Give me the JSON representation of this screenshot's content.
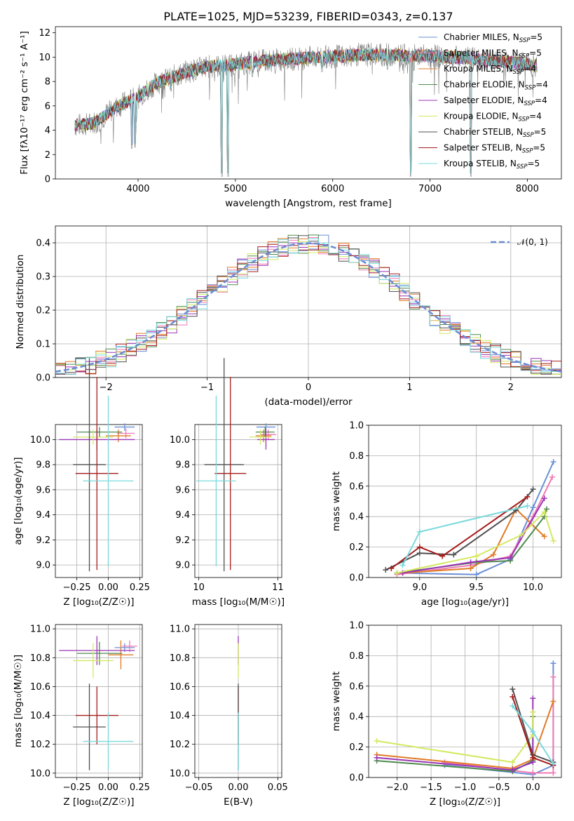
{
  "figure": {
    "title": "PLATE=1025, MJD=53239, FIBERID=0343, z=0.137"
  },
  "colors": {
    "Chabrier MILES": "#6a8fd6",
    "Salpeter MILES": "#f07ab4",
    "Kroupa MILES": "#e07b25",
    "Chabrier ELODIE": "#4f8a4f",
    "Salpeter ELODIE": "#9b35b5",
    "Kroupa ELODIE": "#d4e860",
    "Chabrier STELIB": "#505050",
    "Salpeter STELIB": "#a51c1c",
    "Kroupa STELIB": "#79d9dc",
    "data": "#808080",
    "gaussian": "#6b8cd4"
  },
  "chart_data": [
    {
      "id": "spectrum",
      "type": "line",
      "title": "PLATE=1025, MJD=53239, FIBERID=0343, z=0.137",
      "xlabel": "wavelength [Angstrom, rest frame]",
      "ylabel": "Flux [fλ10⁻¹⁷ erg cm⁻² s⁻¹ A⁻¹]",
      "xlim": [
        3150,
        8350
      ],
      "ylim": [
        0,
        12.5
      ],
      "xticks": [
        4000,
        5000,
        6000,
        7000,
        8000
      ],
      "yticks": [
        0,
        2,
        4,
        6,
        8,
        10,
        12
      ],
      "legend_position": "right",
      "legend": [
        {
          "name": "Chabrier MILES",
          "nssp": "5"
        },
        {
          "name": "Salpeter MILES",
          "nssp": "5"
        },
        {
          "name": "Kroupa MILES",
          "nssp": "4"
        },
        {
          "name": "Chabrier ELODIE",
          "nssp": "4"
        },
        {
          "name": "Salpeter ELODIE",
          "nssp": "4"
        },
        {
          "name": "Kroupa ELODIE",
          "nssp": "4"
        },
        {
          "name": "Chabrier STELIB",
          "nssp": "5"
        },
        {
          "name": "Salpeter STELIB",
          "nssp": "5"
        },
        {
          "name": "Kroupa STELIB",
          "nssp": "5"
        }
      ],
      "continuum": [
        [
          3350,
          4.4
        ],
        [
          3500,
          4.5
        ],
        [
          3600,
          4.8
        ],
        [
          3700,
          5.5
        ],
        [
          3800,
          6.0
        ],
        [
          3900,
          6.4
        ],
        [
          4000,
          6.7
        ],
        [
          4100,
          7.4
        ],
        [
          4200,
          7.9
        ],
        [
          4300,
          8.2
        ],
        [
          4400,
          8.5
        ],
        [
          4500,
          8.8
        ],
        [
          4700,
          9.2
        ],
        [
          4900,
          9.3
        ],
        [
          5100,
          9.5
        ],
        [
          5300,
          9.7
        ],
        [
          5500,
          9.8
        ],
        [
          5700,
          9.9
        ],
        [
          5900,
          10.0
        ],
        [
          6100,
          10.1
        ],
        [
          6300,
          10.2
        ],
        [
          6500,
          10.2
        ],
        [
          6800,
          10.1
        ],
        [
          7000,
          10.1
        ],
        [
          7200,
          10.0
        ],
        [
          7400,
          9.9
        ],
        [
          7600,
          9.7
        ],
        [
          7800,
          9.6
        ],
        [
          8000,
          9.4
        ],
        [
          8100,
          9.3
        ]
      ],
      "dips": [
        [
          3934,
          2.5
        ],
        [
          3968,
          2.6
        ],
        [
          4102,
          6.5
        ],
        [
          4340,
          7.2
        ],
        [
          4861,
          0.2
        ],
        [
          4925,
          0.2
        ],
        [
          5175,
          8.4
        ],
        [
          5890,
          8.8
        ],
        [
          6563,
          9.0
        ],
        [
          6800,
          0.2
        ],
        [
          7420,
          0.2
        ]
      ]
    },
    {
      "id": "residuals",
      "type": "histogram",
      "xlabel": "(data-model)/error",
      "ylabel": "Normed distribution",
      "xlim": [
        -2.5,
        2.5
      ],
      "ylim": [
        0,
        0.45
      ],
      "xticks": [
        -2,
        -1,
        0,
        1,
        2
      ],
      "yticks": [
        0.0,
        0.1,
        0.2,
        0.3,
        0.4
      ],
      "legend": "𝒩(0, 1)",
      "legend_position": "top-right",
      "gaussian": {
        "mean": 0,
        "sigma": 1
      },
      "bin_width": 0.1
    },
    {
      "id": "age-vs-Z",
      "type": "errorbar",
      "xlabel": "Z [log₁₀(Z/Z☉)]",
      "ylabel": "age  [log₁₀(age/yr)]",
      "xlim": [
        -0.42,
        0.27
      ],
      "ylim": [
        8.9,
        10.12
      ],
      "xticks": [
        -0.25,
        0.0,
        0.25
      ],
      "yticks": [
        9.0,
        9.2,
        9.4,
        9.6,
        9.8,
        10.0
      ],
      "points": [
        {
          "model": "Chabrier MILES",
          "x": 0.13,
          "xerr": 0.08,
          "y": 10.1,
          "yerr": 0.03
        },
        {
          "model": "Salpeter MILES",
          "x": 0.14,
          "xerr": 0.07,
          "y": 10.05,
          "yerr": 0.04
        },
        {
          "model": "Kroupa MILES",
          "x": 0.08,
          "xerr": 0.1,
          "y": 10.03,
          "yerr": 0.05
        },
        {
          "model": "Chabrier ELODIE",
          "x": -0.07,
          "xerr": 0.18,
          "y": 10.06,
          "yerr": 0.04
        },
        {
          "model": "Salpeter ELODIE",
          "x": -0.09,
          "xerr": 0.3,
          "y": 10.0,
          "yerr": 0.08
        },
        {
          "model": "Kroupa ELODIE",
          "x": -0.12,
          "xerr": 0.16,
          "y": 10.02,
          "yerr": 0.06
        },
        {
          "model": "Chabrier STELIB",
          "x": -0.15,
          "xerr": 0.13,
          "y": 9.8,
          "yerr": 0.85
        },
        {
          "model": "Salpeter STELIB",
          "x": -0.09,
          "xerr": 0.17,
          "y": 9.73,
          "yerr": 0.77
        },
        {
          "model": "Kroupa STELIB",
          "x": 0.0,
          "xerr": 0.2,
          "y": 9.67,
          "yerr": 0.68
        }
      ]
    },
    {
      "id": "age-vs-mass",
      "type": "errorbar",
      "xlabel": "mass [log₁₀(M/M☉)]",
      "xlim": [
        9.95,
        11.05
      ],
      "ylim": [
        8.9,
        10.12
      ],
      "xticks": [
        10,
        11
      ],
      "yticks": [
        9.0,
        9.2,
        9.4,
        9.6,
        9.8,
        10.0
      ],
      "points": [
        {
          "model": "Chabrier MILES",
          "x": 10.85,
          "xerr": 0.12,
          "y": 10.1,
          "yerr": 0.03
        },
        {
          "model": "Salpeter MILES",
          "x": 10.88,
          "xerr": 0.1,
          "y": 10.04,
          "yerr": 0.04
        },
        {
          "model": "Kroupa MILES",
          "x": 10.82,
          "xerr": 0.1,
          "y": 10.03,
          "yerr": 0.05
        },
        {
          "model": "Chabrier ELODIE",
          "x": 10.84,
          "xerr": 0.12,
          "y": 10.06,
          "yerr": 0.04
        },
        {
          "model": "Salpeter ELODIE",
          "x": 10.85,
          "xerr": 0.11,
          "y": 10.0,
          "yerr": 0.08
        },
        {
          "model": "Kroupa ELODIE",
          "x": 10.78,
          "xerr": 0.14,
          "y": 10.02,
          "yerr": 0.06
        },
        {
          "model": "Chabrier STELIB",
          "x": 10.32,
          "xerr": 0.25,
          "y": 9.8,
          "yerr": 0.85
        },
        {
          "model": "Salpeter STELIB",
          "x": 10.4,
          "xerr": 0.2,
          "y": 9.73,
          "yerr": 0.77
        },
        {
          "model": "Kroupa STELIB",
          "x": 10.22,
          "xerr": 0.25,
          "y": 9.67,
          "yerr": 0.68
        }
      ]
    },
    {
      "id": "massweight-vs-age",
      "type": "line",
      "xlabel": "age  [log₁₀(age/yr)]",
      "ylabel": "mass weight",
      "xlim": [
        8.55,
        10.25
      ],
      "ylim": [
        0,
        1.0
      ],
      "xticks": [
        9.0,
        9.5,
        10.0
      ],
      "yticks": [
        0.0,
        0.2,
        0.4,
        0.6,
        0.8,
        1.0
      ],
      "grid": true,
      "series": [
        {
          "model": "Chabrier MILES",
          "x": [
            8.8,
            9.5,
            9.8,
            10.0,
            10.18
          ],
          "y": [
            0.03,
            0.02,
            0.12,
            0.46,
            0.76
          ]
        },
        {
          "model": "Salpeter MILES",
          "x": [
            8.8,
            9.45,
            9.8,
            10.0,
            10.17
          ],
          "y": [
            0.02,
            0.08,
            0.14,
            0.4,
            0.66
          ]
        },
        {
          "model": "Kroupa MILES",
          "x": [
            8.85,
            9.45,
            9.65,
            9.85,
            10.1
          ],
          "y": [
            0.03,
            0.06,
            0.15,
            0.45,
            0.27
          ]
        },
        {
          "model": "Chabrier ELODIE",
          "x": [
            8.8,
            9.5,
            9.8,
            10.1,
            10.12
          ],
          "y": [
            0.03,
            0.1,
            0.11,
            0.4,
            0.45
          ]
        },
        {
          "model": "Salpeter ELODIE",
          "x": [
            8.85,
            9.45,
            9.8,
            10.1
          ],
          "y": [
            0.03,
            0.1,
            0.13,
            0.52
          ]
        },
        {
          "model": "Kroupa ELODIE",
          "x": [
            8.8,
            9.5,
            9.9,
            10.1,
            10.18
          ],
          "y": [
            0.03,
            0.14,
            0.28,
            0.43,
            0.24
          ]
        },
        {
          "model": "Chabrier STELIB",
          "x": [
            8.7,
            9.0,
            9.3,
            9.85,
            10.0
          ],
          "y": [
            0.05,
            0.16,
            0.15,
            0.44,
            0.58
          ]
        },
        {
          "model": "Salpeter STELIB",
          "x": [
            8.75,
            9.0,
            9.2,
            9.95
          ],
          "y": [
            0.06,
            0.2,
            0.14,
            0.53
          ]
        },
        {
          "model": "Kroupa STELIB",
          "x": [
            8.85,
            9.0,
            9.95
          ],
          "y": [
            0.08,
            0.3,
            0.47
          ]
        }
      ]
    },
    {
      "id": "mass-vs-Z",
      "type": "errorbar",
      "xlabel": "Z [log₁₀(Z/Z☉)]",
      "ylabel": "mass [log₁₀(M/M☉)]",
      "xlim": [
        -0.42,
        0.27
      ],
      "ylim": [
        9.97,
        11.03
      ],
      "xticks": [
        -0.25,
        0.0,
        0.25
      ],
      "yticks": [
        10.0,
        10.2,
        10.4,
        10.6,
        10.8,
        11.0
      ],
      "points": [
        {
          "model": "Chabrier MILES",
          "x": 0.13,
          "xerr": 0.08,
          "y": 10.87,
          "yerr": 0.03
        },
        {
          "model": "Salpeter MILES",
          "x": 0.17,
          "xerr": 0.06,
          "y": 10.88,
          "yerr": 0.04
        },
        {
          "model": "Kroupa MILES",
          "x": 0.1,
          "xerr": 0.1,
          "y": 10.82,
          "yerr": 0.1
        },
        {
          "model": "Chabrier ELODIE",
          "x": -0.07,
          "xerr": 0.18,
          "y": 10.83,
          "yerr": 0.08
        },
        {
          "model": "Salpeter ELODIE",
          "x": -0.09,
          "xerr": 0.3,
          "y": 10.85,
          "yerr": 0.1
        },
        {
          "model": "Kroupa ELODIE",
          "x": -0.12,
          "xerr": 0.16,
          "y": 10.78,
          "yerr": 0.12
        },
        {
          "model": "Chabrier STELIB",
          "x": -0.15,
          "xerr": 0.13,
          "y": 10.32,
          "yerr": 0.3
        },
        {
          "model": "Salpeter STELIB",
          "x": -0.09,
          "xerr": 0.17,
          "y": 10.4,
          "yerr": 0.2
        },
        {
          "model": "Kroupa STELIB",
          "x": 0.0,
          "xerr": 0.2,
          "y": 10.22,
          "yerr": 0.2
        }
      ]
    },
    {
      "id": "mass-vs-EBV",
      "type": "errorbar",
      "xlabel": "E(B-V)",
      "xlim": [
        -0.055,
        0.055
      ],
      "ylim": [
        9.97,
        11.03
      ],
      "xticks": [
        -0.05,
        0.0,
        0.05
      ],
      "yticks": [
        10.0,
        10.2,
        10.4,
        10.6,
        10.8,
        11.0
      ],
      "points": [
        {
          "model": "Salpeter ELODIE",
          "x": 0.0,
          "xerr": 0.0,
          "y": 10.85,
          "yerr": 0.1
        },
        {
          "model": "Kroupa ELODIE",
          "x": 0.0,
          "xerr": 0.0,
          "y": 10.78,
          "yerr": 0.12
        },
        {
          "model": "Salpeter STELIB",
          "x": 0.0,
          "xerr": 0.0,
          "y": 10.4,
          "yerr": 0.2
        },
        {
          "model": "Chabrier STELIB",
          "x": 0.0,
          "xerr": 0.0,
          "y": 10.32,
          "yerr": 0.3
        },
        {
          "model": "Kroupa STELIB",
          "x": 0.0,
          "xerr": 0.0,
          "y": 10.22,
          "yerr": 0.2
        }
      ]
    },
    {
      "id": "massweight-vs-Z",
      "type": "line",
      "xlabel": "Z [log₁₀(Z/Z☉)]",
      "ylabel": "mass weight",
      "xlim": [
        -2.42,
        0.42
      ],
      "ylim": [
        0,
        1.0
      ],
      "xticks": [
        -2.0,
        -1.5,
        -1.0,
        -0.5,
        0.0
      ],
      "yticks": [
        0.0,
        0.2,
        0.4,
        0.6,
        0.8,
        1.0
      ],
      "grid": true,
      "series": [
        {
          "model": "Chabrier MILES",
          "x": [
            -1.3,
            0.0,
            0.3,
            0.3
          ],
          "y": [
            0.08,
            0.02,
            0.08,
            0.75
          ]
        },
        {
          "model": "Salpeter MILES",
          "x": [
            -1.3,
            0.0,
            0.3,
            0.3
          ],
          "y": [
            0.1,
            0.03,
            0.03,
            0.66
          ]
        },
        {
          "model": "Kroupa MILES",
          "x": [
            -2.3,
            -0.3,
            0.0,
            0.3
          ],
          "y": [
            0.15,
            0.06,
            0.12,
            0.5
          ]
        },
        {
          "model": "Chabrier ELODIE",
          "x": [
            -2.3,
            -0.3,
            0.0,
            0.0
          ],
          "y": [
            0.11,
            0.04,
            0.11,
            0.4
          ]
        },
        {
          "model": "Salpeter ELODIE",
          "x": [
            -2.3,
            -0.3,
            0.0,
            0.0
          ],
          "y": [
            0.13,
            0.05,
            0.1,
            0.52
          ]
        },
        {
          "model": "Kroupa ELODIE",
          "x": [
            -2.3,
            -0.3,
            0.0,
            0.0
          ],
          "y": [
            0.24,
            0.1,
            0.28,
            0.43
          ]
        },
        {
          "model": "Chabrier STELIB",
          "x": [
            -0.3,
            0.0,
            0.3
          ],
          "y": [
            0.58,
            0.15,
            0.1
          ]
        },
        {
          "model": "Salpeter STELIB",
          "x": [
            -0.3,
            0.0,
            0.3
          ],
          "y": [
            0.53,
            0.13,
            0.08
          ]
        },
        {
          "model": "Kroupa STELIB",
          "x": [
            -0.3,
            0.0,
            0.3
          ],
          "y": [
            0.47,
            0.3,
            0.09
          ]
        }
      ]
    }
  ]
}
